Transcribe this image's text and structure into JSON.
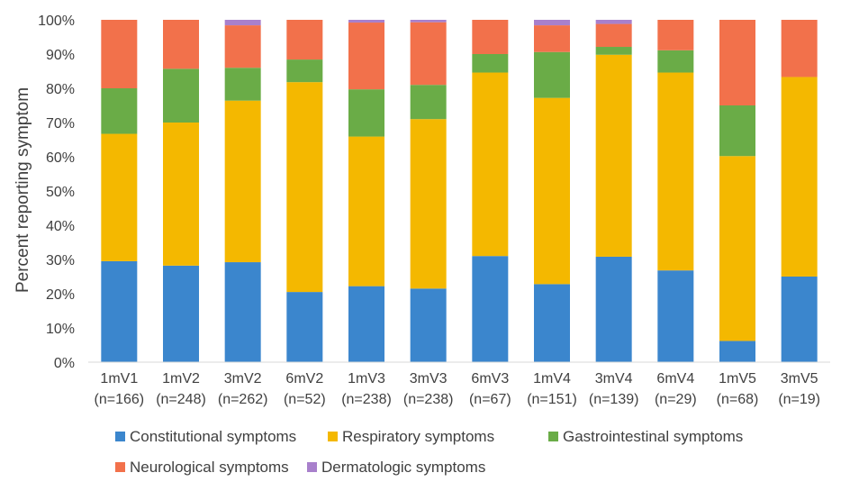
{
  "chart_data": {
    "type": "bar",
    "stacked": true,
    "percent_stacked": true,
    "ylabel": "Percent reporting symptom",
    "xlabel": "",
    "ylim": [
      0,
      100
    ],
    "yticks": [
      "0%",
      "10%",
      "20%",
      "30%",
      "40%",
      "50%",
      "60%",
      "70%",
      "80%",
      "90%",
      "100%"
    ],
    "grid": false,
    "legend_position": "bottom",
    "categories": [
      {
        "name": "1mV1",
        "n": "(n=166)"
      },
      {
        "name": "1mV2",
        "n": "(n=248)"
      },
      {
        "name": "3mV2",
        "n": "(n=262)"
      },
      {
        "name": "6mV2",
        "n": "(n=52)"
      },
      {
        "name": "1mV3",
        "n": "(n=238)"
      },
      {
        "name": "3mV3",
        "n": "(n=238)"
      },
      {
        "name": "6mV3",
        "n": "(n=67)"
      },
      {
        "name": "1mV4",
        "n": "(n=151)"
      },
      {
        "name": "3mV4",
        "n": "(n=139)"
      },
      {
        "name": "6mV4",
        "n": "(n=29)"
      },
      {
        "name": "1mV5",
        "n": "(n=68)"
      },
      {
        "name": "3mV5",
        "n": "(n=19)"
      }
    ],
    "series": [
      {
        "name": "Constitutional symptoms",
        "color": "#3b86cd",
        "values": [
          29.5,
          28.2,
          29.2,
          20.5,
          22.2,
          21.5,
          31.0,
          22.8,
          30.8,
          26.8,
          6.2,
          25.0
        ]
      },
      {
        "name": "Respiratory symptoms",
        "color": "#f4b800",
        "values": [
          37.2,
          41.8,
          47.2,
          61.3,
          43.7,
          49.5,
          53.6,
          54.4,
          59.0,
          57.8,
          54.0,
          58.3
        ]
      },
      {
        "name": "Gastrointestinal symptoms",
        "color": "#6aac47",
        "values": [
          13.3,
          15.7,
          9.6,
          6.6,
          13.8,
          10.0,
          5.4,
          13.4,
          2.3,
          6.5,
          14.8,
          0
        ]
      },
      {
        "name": "Neurological symptoms",
        "color": "#f2714b",
        "values": [
          20.0,
          14.3,
          12.4,
          11.6,
          19.5,
          18.3,
          10.0,
          7.8,
          6.7,
          8.9,
          25.0,
          16.7
        ]
      },
      {
        "name": "Dermatologic symptoms",
        "color": "#a880cc",
        "values": [
          0,
          0,
          1.6,
          0,
          0.8,
          0.7,
          0,
          1.6,
          1.2,
          0,
          0,
          0
        ]
      }
    ]
  }
}
